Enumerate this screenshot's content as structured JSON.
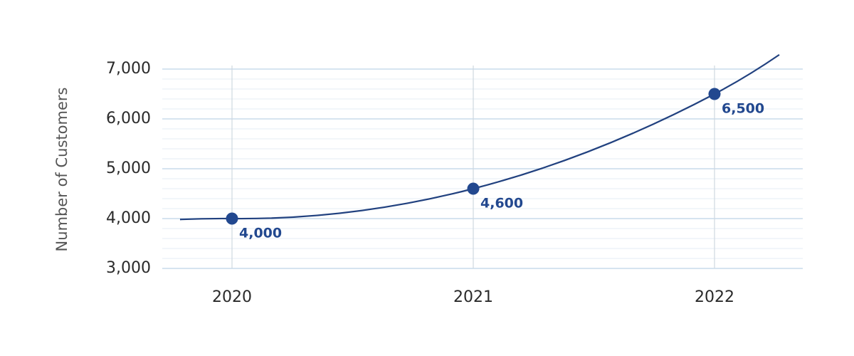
{
  "chart_data": {
    "type": "line",
    "y_label": "Number of Customers",
    "categories": [
      "2020",
      "2021",
      "2022"
    ],
    "series": [
      {
        "name": "Customers",
        "color": "#21417f",
        "values": [
          4000,
          4600,
          6500
        ],
        "value_labels": [
          "4,000",
          "4,600",
          "6,500"
        ]
      }
    ],
    "marker_color": "#22488f",
    "ylim": [
      3000,
      7000
    ],
    "yticks": [
      {
        "value": 3000,
        "label": "3,000"
      },
      {
        "value": 4000,
        "label": "4,000"
      },
      {
        "value": 5000,
        "label": "5,000"
      },
      {
        "value": 6000,
        "label": "6,000"
      },
      {
        "value": 7000,
        "label": "7,000"
      }
    ],
    "minor_yticks": [
      3200,
      3400,
      3600,
      3800,
      4200,
      4400,
      4600,
      4800,
      5200,
      5400,
      5600,
      5800,
      6200,
      6400,
      6600,
      6800
    ],
    "grid": true
  }
}
